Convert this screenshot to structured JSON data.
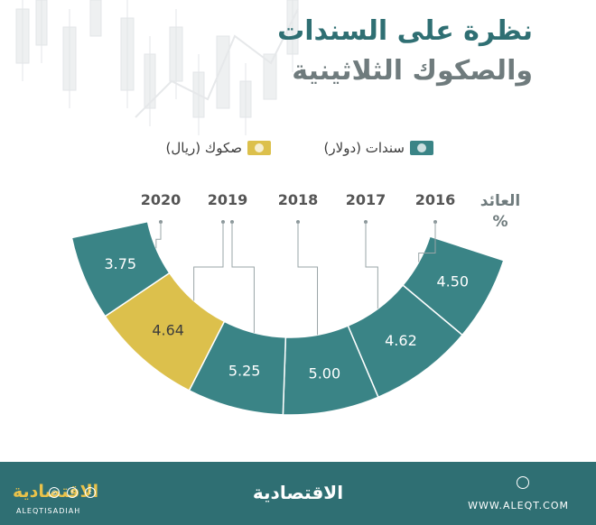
{
  "title": {
    "line1": "نظرة على السندات",
    "line2": "والصكوك الثلاثينية"
  },
  "legend": {
    "bonds": "سندات (دولار)",
    "sukuk": "صكوك (ريال)"
  },
  "colors": {
    "bonds": "#3a8486",
    "sukuk": "#dcc04c",
    "title": "#2f6f73",
    "footer": "#2f6f73"
  },
  "icons": {
    "legend_bonds": "banknote-icon",
    "legend_sukuk": "banknote-icon",
    "footer_site": "globe-icon"
  },
  "chart_data": {
    "type": "bar",
    "ylabel": "العائد %",
    "categories": [
      "2016",
      "2017",
      "2018",
      "2019",
      "2019",
      "2020"
    ],
    "series": [
      {
        "name": "سندات (دولار)",
        "values": [
          4.5,
          4.62,
          5.0,
          5.25,
          null,
          3.75
        ]
      },
      {
        "name": "صكوك (ريال)",
        "values": [
          null,
          null,
          null,
          null,
          4.64,
          null
        ]
      }
    ],
    "segments": [
      {
        "year": "2016",
        "value": "4.50",
        "type": "bonds"
      },
      {
        "year": "2017",
        "value": "4.62",
        "type": "bonds"
      },
      {
        "year": "2018",
        "value": "5.00",
        "type": "bonds"
      },
      {
        "year": "2019",
        "value": "5.25",
        "type": "bonds"
      },
      {
        "year": "2019",
        "value": "4.64",
        "type": "sukuk"
      },
      {
        "year": "2020",
        "value": "3.75",
        "type": "bonds"
      }
    ],
    "years": [
      "2016",
      "2017",
      "2018",
      "2019",
      "2020"
    ],
    "axis_label_line1": "العائد",
    "axis_label_line2": "%"
  },
  "footer": {
    "logo": "الاقتصادية",
    "url": "WWW.ALEQT.COM",
    "brand_ar": "الاقتصادية",
    "brand_en": "ALEQTISADIAH"
  }
}
